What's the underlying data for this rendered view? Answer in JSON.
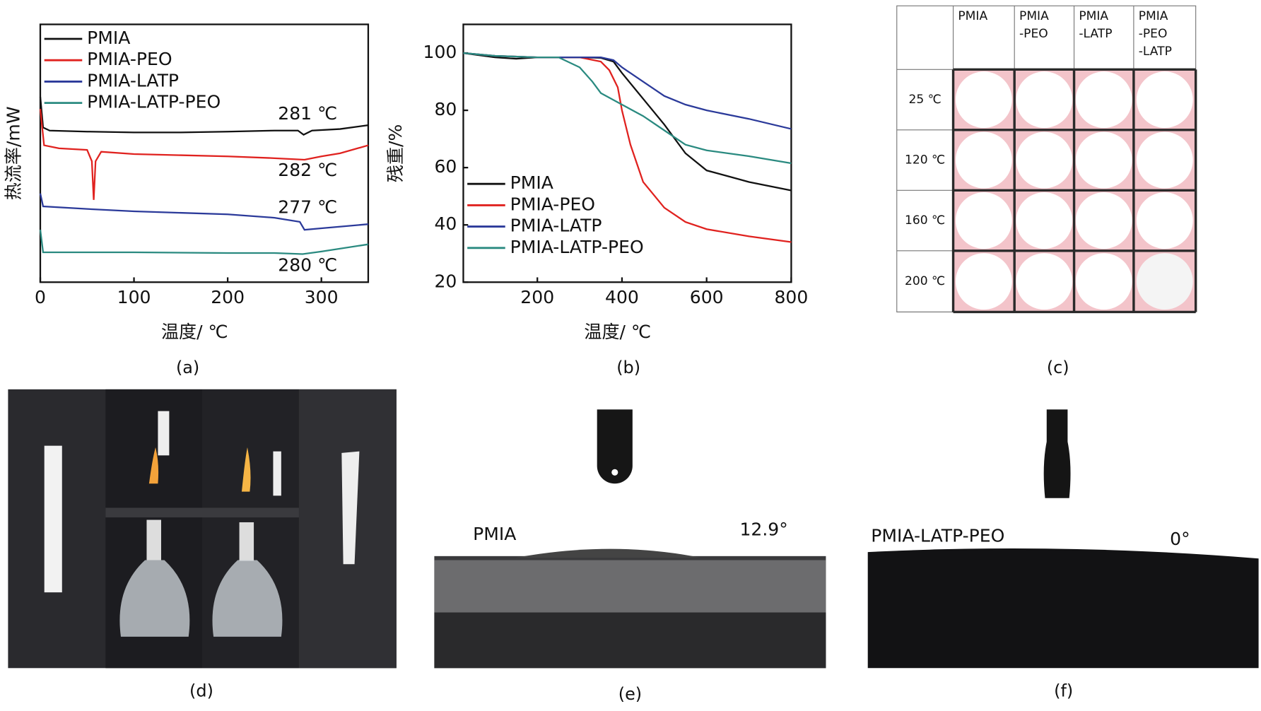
{
  "chart_data": [
    {
      "type": "line",
      "panel": "(a)",
      "ylabel": "热流率/mW",
      "xlabel": "温度/ ℃",
      "xlim": [
        0,
        350
      ],
      "xticks": [
        0,
        100,
        200,
        300
      ],
      "ylim": [
        0,
        100
      ],
      "legend": "upper left",
      "frame": true,
      "series": [
        {
          "name": "PMIA",
          "color": "#111111",
          "x": [
            0,
            3,
            10,
            50,
            100,
            150,
            200,
            250,
            275,
            281,
            290,
            320,
            350
          ],
          "values": [
            71.9,
            60,
            58.8,
            58.4,
            58.1,
            58.1,
            58.4,
            58.8,
            58.8,
            57.2,
            58.8,
            59.4,
            60.9
          ]
        },
        {
          "name": "PMIA-PEO",
          "color": "#e0221f",
          "x": [
            0,
            4,
            20,
            50,
            55,
            57,
            59,
            65,
            100,
            200,
            250,
            282,
            300,
            320,
            350
          ],
          "values": [
            67.2,
            53.1,
            51.9,
            51.3,
            46.9,
            31.9,
            46.9,
            50.6,
            49.7,
            48.8,
            48.1,
            47.5,
            48.8,
            50,
            53.1
          ]
        },
        {
          "name": "PMIA-LATP",
          "color": "#2b3a9a",
          "x": [
            0,
            3,
            50,
            100,
            200,
            250,
            277,
            282,
            300,
            350
          ],
          "values": [
            34.4,
            29.4,
            28.4,
            27.5,
            26.3,
            25,
            23.4,
            20.3,
            20.9,
            22.5
          ]
        },
        {
          "name": "PMIA-LATP-PEO",
          "color": "#2a8a80",
          "x": [
            0,
            3,
            50,
            100,
            200,
            250,
            280,
            300,
            350
          ],
          "values": [
            20.3,
            11.6,
            11.6,
            11.6,
            11.3,
            11.3,
            10.9,
            11.9,
            14.7
          ]
        }
      ],
      "annotations": [
        "281 ℃",
        "282 ℃",
        "277 ℃",
        "280 ℃"
      ]
    },
    {
      "type": "line",
      "panel": "(b)",
      "ylabel": "残重/%",
      "xlabel": "温度/ ℃",
      "xlim": [
        25,
        800
      ],
      "xticks": [
        200,
        400,
        600,
        800
      ],
      "ylim": [
        20,
        110
      ],
      "yticks": [
        20,
        40,
        60,
        80,
        100
      ],
      "legend": "center left",
      "frame": true,
      "series": [
        {
          "name": "PMIA",
          "color": "#111111",
          "x": [
            25,
            100,
            150,
            200,
            250,
            300,
            350,
            380,
            400,
            450,
            500,
            550,
            600,
            650,
            700,
            800
          ],
          "values": [
            100,
            98.5,
            98,
            98.5,
            98.5,
            98.5,
            98.3,
            97,
            93,
            84,
            75,
            65,
            59,
            57,
            55,
            52
          ]
        },
        {
          "name": "PMIA-PEO",
          "color": "#e0221f",
          "x": [
            25,
            100,
            200,
            300,
            350,
            370,
            390,
            400,
            420,
            450,
            500,
            550,
            600,
            700,
            800
          ],
          "values": [
            100,
            99,
            98.5,
            98.5,
            97,
            94,
            88,
            80,
            68,
            55,
            46,
            41,
            38.5,
            36,
            34
          ]
        },
        {
          "name": "PMIA-LATP",
          "color": "#2b3a9a",
          "x": [
            25,
            100,
            200,
            300,
            350,
            380,
            400,
            450,
            500,
            550,
            600,
            700,
            800
          ],
          "values": [
            100,
            99,
            98.5,
            98.5,
            98.5,
            97.5,
            95,
            90,
            85,
            82,
            80,
            77,
            73.5
          ]
        },
        {
          "name": "PMIA-LATP-PEO",
          "color": "#2a8a80",
          "x": [
            25,
            100,
            200,
            250,
            300,
            330,
            350,
            400,
            450,
            500,
            550,
            600,
            700,
            800
          ],
          "values": [
            100,
            99,
            98.5,
            98.5,
            95,
            90,
            86,
            82,
            78,
            73,
            68,
            66,
            64,
            61.5
          ]
        }
      ]
    }
  ],
  "table": {
    "panel": "(c)",
    "columns": [
      [
        "PMIA"
      ],
      [
        "PMIA",
        "-PEO"
      ],
      [
        "PMIA",
        "-LATP"
      ],
      [
        "PMIA",
        "-PEO",
        "-LATP"
      ]
    ],
    "rows": [
      "25 ℃",
      "120 ℃",
      "160 ℃",
      "200 ℃"
    ]
  },
  "photos": {
    "d": {
      "panel": "(d)"
    },
    "e": {
      "panel": "(e)",
      "sample": "PMIA",
      "angle": "12.9°"
    },
    "f": {
      "panel": "(f)",
      "sample": "PMIA-LATP-PEO",
      "angle": "0°"
    }
  }
}
